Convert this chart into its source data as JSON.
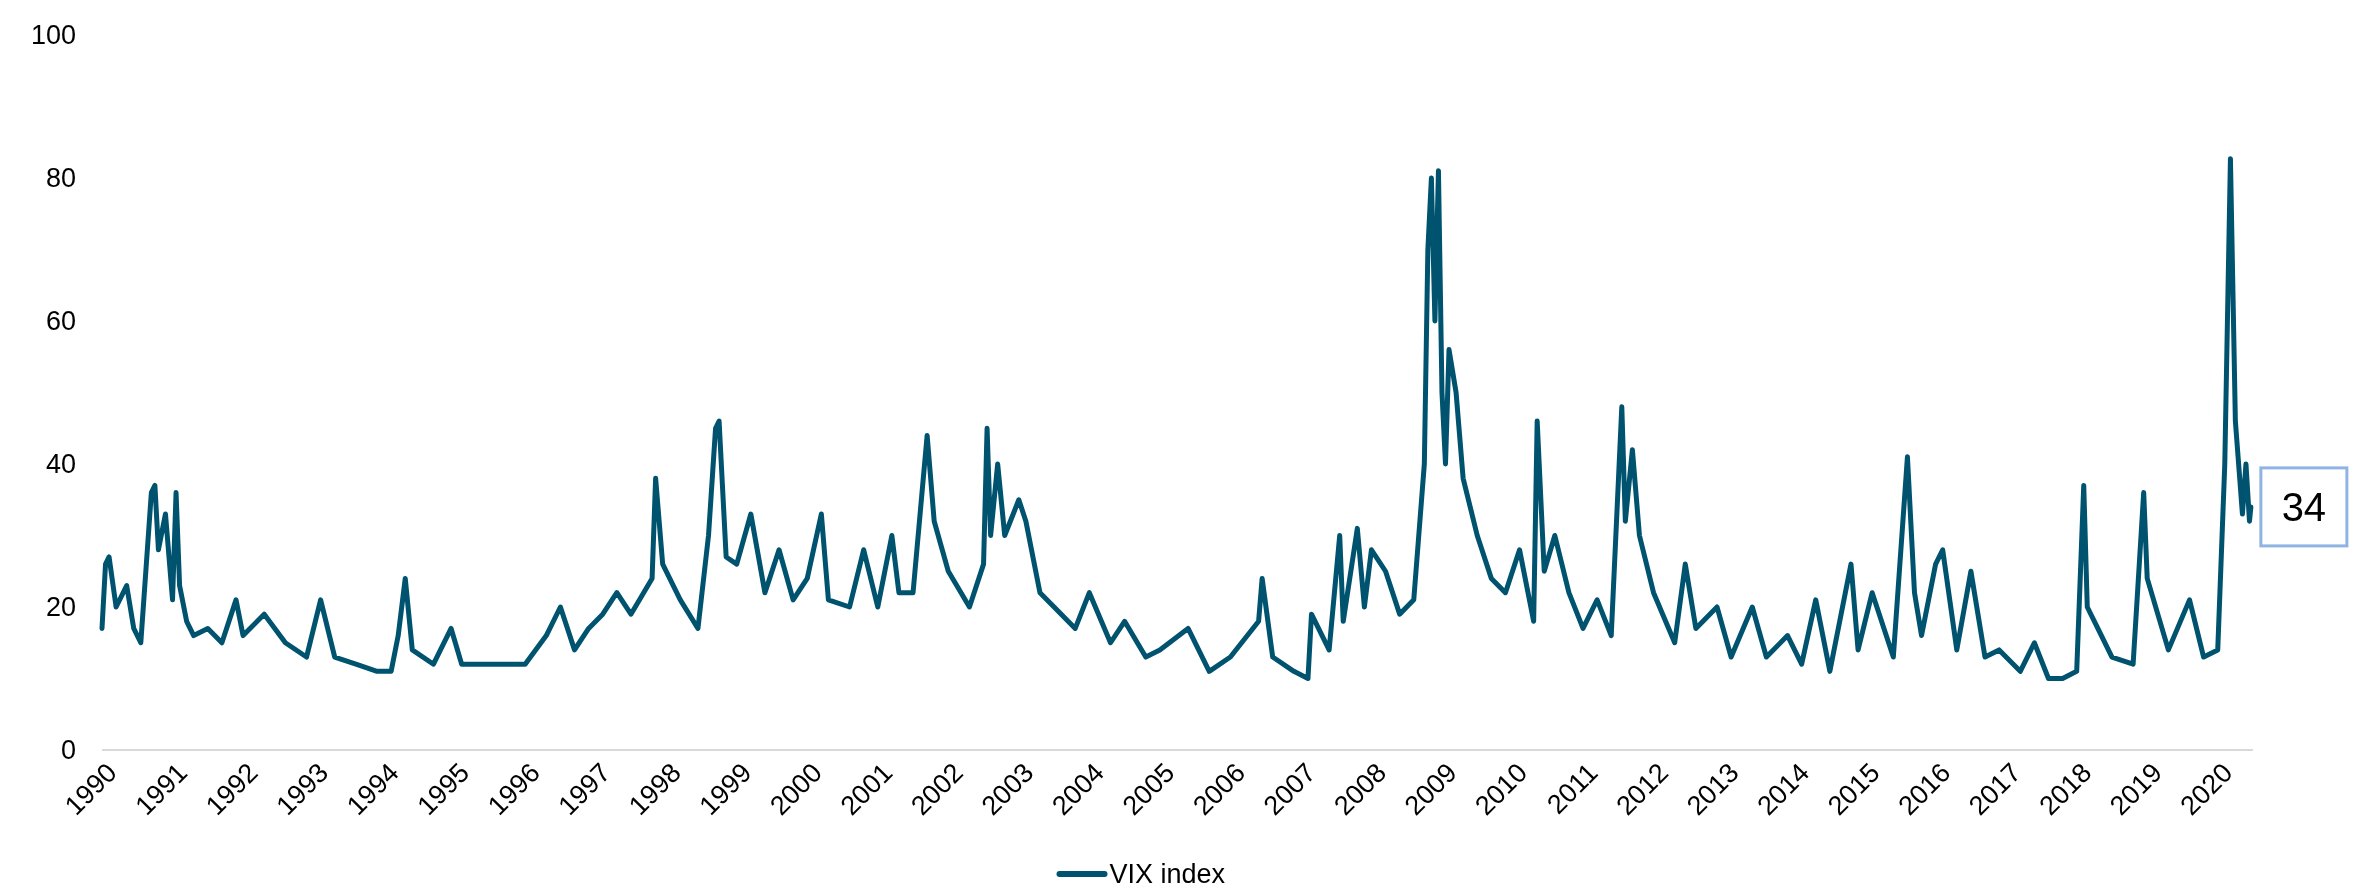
{
  "chart_data": {
    "type": "line",
    "xlim": [
      1990,
      2020.5
    ],
    "xticks": [
      1990,
      1991,
      1992,
      1993,
      1994,
      1995,
      1996,
      1997,
      1998,
      1999,
      2000,
      2001,
      2002,
      2003,
      2004,
      2005,
      2006,
      2007,
      2008,
      2009,
      2010,
      2011,
      2012,
      2013,
      2014,
      2015,
      2016,
      2017,
      2018,
      2019,
      2020
    ],
    "ylim": [
      0,
      100
    ],
    "yticks": [
      0,
      20,
      40,
      60,
      80,
      100
    ],
    "grid": false,
    "legend": "bottom",
    "line_style": "solid",
    "annotations": [
      {
        "text": "34",
        "x": 2020.47,
        "y": 34
      }
    ],
    "series": [
      {
        "name": "VIX index",
        "color": "#00536f",
        "x": [
          1990.0,
          1990.05,
          1990.1,
          1990.2,
          1990.35,
          1990.45,
          1990.55,
          1990.6,
          1990.7,
          1990.75,
          1990.8,
          1990.9,
          1991.0,
          1991.05,
          1991.1,
          1991.2,
          1991.3,
          1991.5,
          1991.7,
          1991.9,
          1992.0,
          1992.3,
          1992.6,
          1992.9,
          1993.1,
          1993.3,
          1993.6,
          1993.9,
          1994.1,
          1994.2,
          1994.3,
          1994.4,
          1994.7,
          1994.95,
          1995.1,
          1995.5,
          1995.8,
          1996.0,
          1996.3,
          1996.5,
          1996.7,
          1996.9,
          1997.1,
          1997.3,
          1997.5,
          1997.8,
          1997.85,
          1997.95,
          1998.2,
          1998.45,
          1998.6,
          1998.7,
          1998.75,
          1998.85,
          1999.0,
          1999.2,
          1999.4,
          1999.6,
          1999.8,
          2000.0,
          2000.2,
          2000.3,
          2000.6,
          2000.8,
          2001.0,
          2001.2,
          2001.3,
          2001.5,
          2001.7,
          2001.8,
          2002.0,
          2002.3,
          2002.5,
          2002.55,
          2002.6,
          2002.7,
          2002.8,
          2003.0,
          2003.1,
          2003.3,
          2003.5,
          2003.8,
          2004.0,
          2004.3,
          2004.5,
          2004.8,
          2005.0,
          2005.4,
          2005.7,
          2006.0,
          2006.4,
          2006.45,
          2006.6,
          2006.9,
          2007.1,
          2007.15,
          2007.4,
          2007.55,
          2007.6,
          2007.8,
          2007.9,
          2008.0,
          2008.2,
          2008.4,
          2008.6,
          2008.75,
          2008.8,
          2008.85,
          2008.9,
          2008.95,
          2009.0,
          2009.05,
          2009.1,
          2009.2,
          2009.3,
          2009.5,
          2009.7,
          2009.9,
          2010.1,
          2010.3,
          2010.35,
          2010.45,
          2010.6,
          2010.8,
          2011.0,
          2011.2,
          2011.4,
          2011.55,
          2011.6,
          2011.7,
          2011.8,
          2012.0,
          2012.3,
          2012.45,
          2012.6,
          2012.9,
          2013.1,
          2013.4,
          2013.6,
          2013.9,
          2014.1,
          2014.3,
          2014.5,
          2014.8,
          2014.9,
          2015.1,
          2015.4,
          2015.6,
          2015.7,
          2015.8,
          2016.0,
          2016.1,
          2016.3,
          2016.5,
          2016.7,
          2016.9,
          2017.2,
          2017.4,
          2017.6,
          2017.8,
          2018.0,
          2018.1,
          2018.15,
          2018.3,
          2018.5,
          2018.8,
          2018.95,
          2019.0,
          2019.3,
          2019.6,
          2019.8,
          2020.0,
          2020.1,
          2020.18,
          2020.25,
          2020.35,
          2020.4,
          2020.45,
          2020.47
        ],
        "values": [
          17,
          26,
          27,
          20,
          23,
          17,
          15,
          22,
          36,
          37,
          28,
          33,
          21,
          36,
          23,
          18,
          16,
          17,
          15,
          21,
          16,
          19,
          15,
          13,
          21,
          13,
          12,
          11,
          11,
          16,
          24,
          14,
          12,
          17,
          12,
          12,
          12,
          12,
          16,
          20,
          14,
          17,
          19,
          22,
          19,
          24,
          38,
          26,
          21,
          17,
          30,
          45,
          46,
          27,
          26,
          33,
          22,
          28,
          21,
          24,
          33,
          21,
          20,
          28,
          20,
          30,
          22,
          22,
          44,
          32,
          25,
          20,
          26,
          45,
          30,
          40,
          30,
          35,
          32,
          22,
          20,
          17,
          22,
          15,
          18,
          13,
          14,
          17,
          11,
          13,
          18,
          24,
          13,
          11,
          10,
          19,
          14,
          30,
          18,
          31,
          20,
          28,
          25,
          19,
          21,
          40,
          70,
          80,
          60,
          81,
          50,
          40,
          56,
          50,
          38,
          30,
          24,
          22,
          28,
          18,
          46,
          25,
          30,
          22,
          17,
          21,
          16,
          48,
          32,
          42,
          30,
          22,
          15,
          26,
          17,
          20,
          13,
          20,
          13,
          16,
          12,
          21,
          11,
          26,
          14,
          22,
          13,
          41,
          22,
          16,
          26,
          28,
          14,
          25,
          13,
          14,
          11,
          15,
          10,
          10,
          11,
          37,
          20,
          17,
          13,
          12,
          36,
          24,
          14,
          21,
          13,
          14,
          40,
          82.7,
          46,
          33,
          40,
          32,
          34
        ]
      }
    ]
  }
}
